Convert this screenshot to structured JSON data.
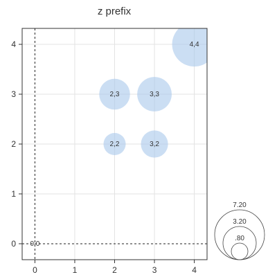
{
  "chart_data": {
    "type": "scatter",
    "title": "z prefix",
    "xlabel": "",
    "ylabel": "",
    "xlim": [
      -0.32,
      4.32
    ],
    "ylim": [
      -0.32,
      4.32
    ],
    "x_ticks": [
      "0",
      "1",
      "2",
      "3",
      "4"
    ],
    "y_ticks": [
      "0",
      "1",
      "2",
      "3",
      "4"
    ],
    "grid": true,
    "zero_lines": true,
    "bubble_color": "#a8c8eb",
    "points": [
      {
        "x": 0,
        "y": 0,
        "size": 0,
        "label": "0,0"
      },
      {
        "x": 2,
        "y": 2,
        "size": 1.8,
        "label": "2,2"
      },
      {
        "x": 3,
        "y": 2,
        "size": 2.2,
        "label": "3,2"
      },
      {
        "x": 2,
        "y": 3,
        "size": 2.5,
        "label": "2,3"
      },
      {
        "x": 3,
        "y": 3,
        "size": 2.8,
        "label": "3,3"
      },
      {
        "x": 4,
        "y": 4,
        "size": 3.6,
        "label": "4,4"
      }
    ],
    "size_legend": {
      "placement": "bottom-right",
      "entries": [
        {
          "label": "7.20",
          "value": 7.2
        },
        {
          "label": "3.20",
          "value": 3.2
        },
        {
          "label": ".80",
          "value": 0.8
        }
      ]
    }
  }
}
